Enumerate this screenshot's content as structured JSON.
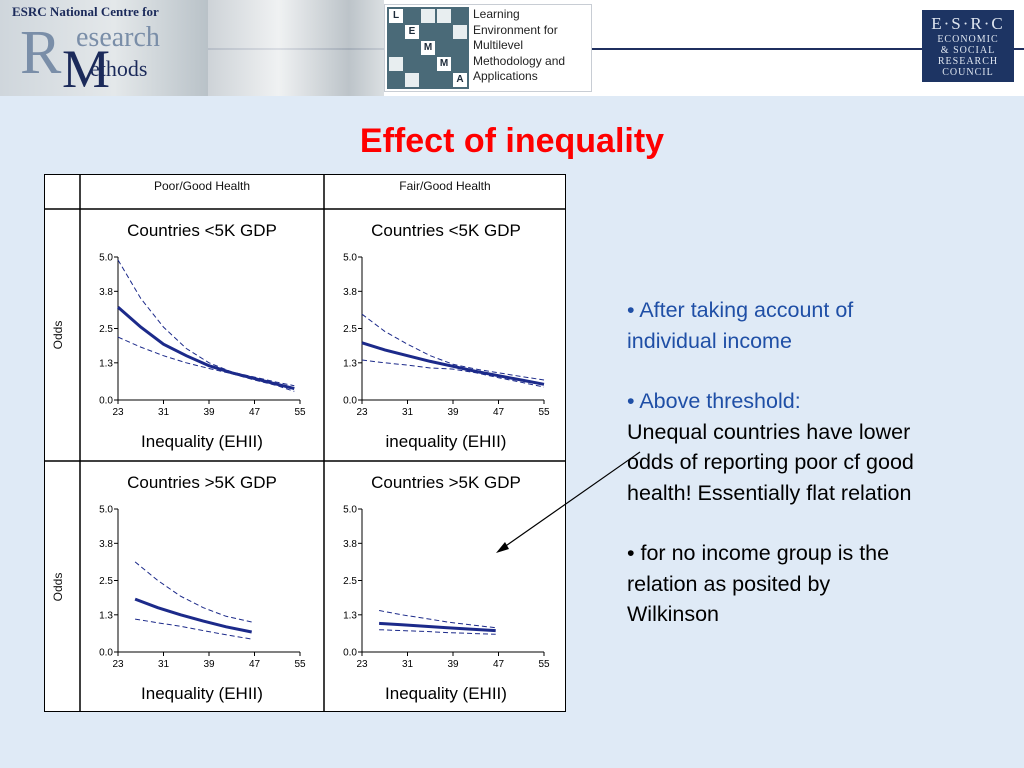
{
  "header": {
    "rm_logo": {
      "top_text": "ESRC National Centre for",
      "research": "esearch",
      "r_letter": "R",
      "m_letter": "M",
      "methods": "ethods"
    },
    "lemma_logo": {
      "cells": [
        "L",
        "E",
        "M",
        "M",
        "A"
      ],
      "lines": [
        "Learning",
        "Environment for",
        "Multilevel",
        "Methodology and",
        "Applications"
      ]
    },
    "esrc_logo": {
      "lines": [
        "E·S·R·C",
        "ECONOMIC",
        "& SOCIAL",
        "RESEARCH",
        "COUNCIL"
      ]
    }
  },
  "title": "Effect of inequality",
  "column_headers": [
    "Poor/Good Health",
    "Fair/Good Health"
  ],
  "row_label": "Odds",
  "chart_data": [
    {
      "type": "line",
      "title": "Countries <5K GDP",
      "xlabel": "Inequality (EHII)",
      "ylabel": "Odds",
      "xticks": [
        23,
        31,
        39,
        47,
        55
      ],
      "yticks": [
        "0.0",
        "1.3",
        "2.5",
        "3.8",
        "5.0"
      ],
      "xlim": [
        23,
        55
      ],
      "ylim": [
        0,
        5
      ],
      "series": [
        {
          "role": "estimate",
          "x": [
            23,
            27,
            31,
            35,
            39,
            43,
            47,
            51,
            54
          ],
          "y": [
            3.25,
            2.55,
            1.95,
            1.55,
            1.2,
            0.95,
            0.75,
            0.55,
            0.4
          ]
        },
        {
          "role": "upper",
          "x": [
            23,
            27,
            31,
            35,
            39,
            43,
            47,
            51,
            54
          ],
          "y": [
            4.9,
            3.55,
            2.55,
            1.8,
            1.3,
            0.98,
            0.8,
            0.62,
            0.5
          ]
        },
        {
          "role": "lower",
          "x": [
            23,
            27,
            31,
            35,
            39,
            43,
            47,
            51,
            54
          ],
          "y": [
            2.2,
            1.85,
            1.55,
            1.3,
            1.1,
            0.92,
            0.7,
            0.5,
            0.3
          ]
        }
      ]
    },
    {
      "type": "line",
      "title": "Countries <5K GDP",
      "xlabel": "inequality (EHII)",
      "ylabel": "",
      "xticks": [
        23,
        31,
        39,
        47,
        55
      ],
      "yticks": [
        "0.0",
        "1.3",
        "2.5",
        "3.8",
        "5.0"
      ],
      "xlim": [
        23,
        55
      ],
      "ylim": [
        0,
        5
      ],
      "series": [
        {
          "role": "estimate",
          "x": [
            23,
            27,
            31,
            35,
            39,
            43,
            47,
            51,
            55
          ],
          "y": [
            2.0,
            1.75,
            1.55,
            1.35,
            1.18,
            1.0,
            0.85,
            0.7,
            0.55
          ]
        },
        {
          "role": "upper",
          "x": [
            23,
            27,
            31,
            35,
            39,
            43,
            47,
            51,
            55
          ],
          "y": [
            3.0,
            2.4,
            1.95,
            1.55,
            1.25,
            1.08,
            0.95,
            0.82,
            0.7
          ]
        },
        {
          "role": "lower",
          "x": [
            23,
            27,
            31,
            35,
            39,
            43,
            47,
            51,
            55
          ],
          "y": [
            1.4,
            1.3,
            1.22,
            1.12,
            1.08,
            0.95,
            0.78,
            0.62,
            0.45
          ]
        }
      ]
    },
    {
      "type": "line",
      "title": "Countries >5K GDP",
      "xlabel": "Inequality (EHII)",
      "ylabel": "Odds",
      "xticks": [
        23,
        31,
        39,
        47,
        55
      ],
      "yticks": [
        "0.0",
        "1.3",
        "2.5",
        "3.8",
        "5.0"
      ],
      "xlim": [
        23,
        55
      ],
      "ylim": [
        0,
        5
      ],
      "series": [
        {
          "role": "estimate",
          "x": [
            26,
            30,
            34,
            38,
            42,
            46.5
          ],
          "y": [
            1.85,
            1.55,
            1.3,
            1.08,
            0.88,
            0.7
          ]
        },
        {
          "role": "upper",
          "x": [
            26,
            30,
            34,
            38,
            42,
            46.5
          ],
          "y": [
            3.15,
            2.5,
            1.95,
            1.55,
            1.25,
            1.05
          ]
        },
        {
          "role": "lower",
          "x": [
            26,
            30,
            34,
            38,
            42,
            46.5
          ],
          "y": [
            1.15,
            1.02,
            0.9,
            0.75,
            0.6,
            0.45
          ]
        }
      ]
    },
    {
      "type": "line",
      "title": "Countries >5K GDP",
      "xlabel": "Inequality (EHII)",
      "ylabel": "",
      "xticks": [
        23,
        31,
        39,
        47,
        55
      ],
      "yticks": [
        "0.0",
        "1.3",
        "2.5",
        "3.8",
        "5.0"
      ],
      "xlim": [
        23,
        55
      ],
      "ylim": [
        0,
        5
      ],
      "series": [
        {
          "role": "estimate",
          "x": [
            26,
            30,
            34,
            38,
            42,
            46.5
          ],
          "y": [
            1.0,
            0.95,
            0.9,
            0.85,
            0.8,
            0.75
          ]
        },
        {
          "role": "upper",
          "x": [
            26,
            30,
            34,
            38,
            42,
            46.5
          ],
          "y": [
            1.45,
            1.3,
            1.18,
            1.05,
            0.95,
            0.85
          ]
        },
        {
          "role": "lower",
          "x": [
            26,
            30,
            34,
            38,
            42,
            46.5
          ],
          "y": [
            0.78,
            0.75,
            0.72,
            0.68,
            0.65,
            0.62
          ]
        }
      ]
    }
  ],
  "notes": [
    {
      "highlight": "• After taking account of individual income",
      "rest": ""
    },
    {
      "highlight": "• Above  threshold:",
      "rest": "Unequal countries have lower odds of reporting poor cf good health! Essentially flat relation"
    },
    {
      "highlight": "",
      "rest": "• for no income group is the relation as posited by Wilkinson"
    }
  ],
  "colors": {
    "title": "#ff0000",
    "curve": "#1c2a8a",
    "highlight_text": "#1f4fa6",
    "background": "#dfeaf6"
  }
}
